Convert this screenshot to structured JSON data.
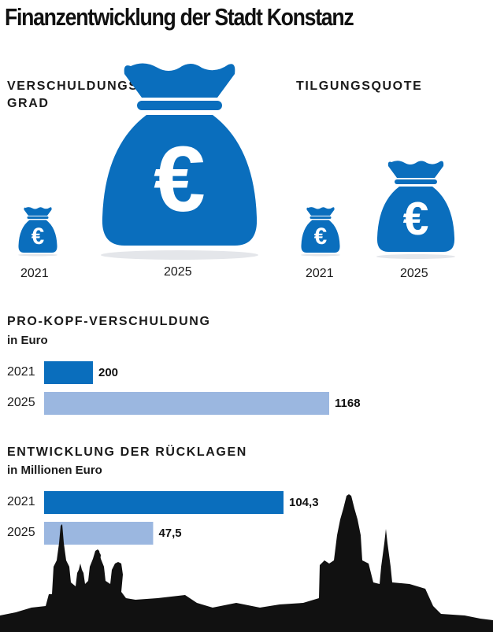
{
  "title": "Finanzentwicklung der Stadt Konstanz",
  "colors": {
    "dark_blue": "#0a6ebd",
    "light_blue": "#9bb7e0",
    "skyline": "#111111"
  },
  "bag_panels": [
    {
      "heading_line1": "VERSCHULDUNGS-",
      "heading_line2": "GRAD",
      "bags": [
        {
          "year": "2021",
          "relative_size": 0.25
        },
        {
          "year": "2025",
          "relative_size": 1.0
        }
      ]
    },
    {
      "heading_line1": "TILGUNGSQUOTE",
      "heading_line2": "",
      "bags": [
        {
          "year": "2021",
          "relative_size": 0.25
        },
        {
          "year": "2025",
          "relative_size": 0.5
        }
      ]
    }
  ],
  "chart_data": [
    {
      "type": "bar",
      "orientation": "horizontal",
      "title": "PRO-KOPF-VERSCHULDUNG",
      "subtitle": "in Euro",
      "categories": [
        "2021",
        "2025"
      ],
      "values": [
        200,
        1168
      ],
      "value_labels": [
        "200",
        "1168"
      ],
      "xlim": [
        0,
        1168
      ]
    },
    {
      "type": "bar",
      "orientation": "horizontal",
      "title": "ENTWICKLUNG DER RÜCKLAGEN",
      "subtitle": "in Millionen Euro",
      "categories": [
        "2021",
        "2025"
      ],
      "values": [
        104.3,
        47.5
      ],
      "value_labels": [
        "104,3",
        "47,5"
      ],
      "xlim": [
        0,
        104.3
      ]
    }
  ]
}
